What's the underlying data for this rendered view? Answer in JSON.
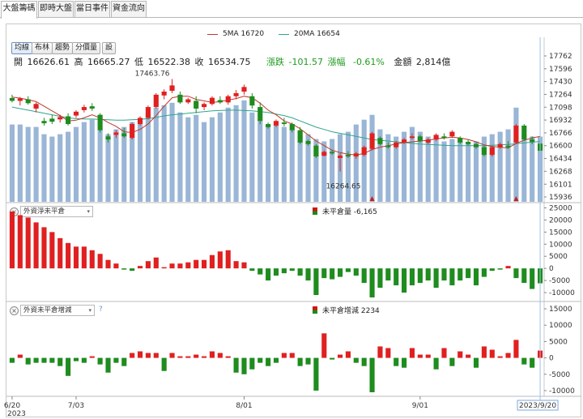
{
  "tabs": [
    {
      "label": "大盤籌碼",
      "active": true
    },
    {
      "label": "即時大盤",
      "active": false
    },
    {
      "label": "當日事件",
      "active": false
    },
    {
      "label": "資金流向",
      "active": false
    }
  ],
  "legend": {
    "ma5": "5MA 16720",
    "ma20": "20MA 16654",
    "ma5_color": "#c0392b",
    "ma20_color": "#2fa58c"
  },
  "toolbar": {
    "buttons": [
      "均線",
      "布林",
      "趨勢",
      "分價量",
      "設"
    ]
  },
  "info": {
    "open_label": "開",
    "open": "16626.61",
    "high_label": "高",
    "high": "16665.27",
    "low_label": "低",
    "low": "16522.38",
    "close_label": "收",
    "close": "16534.75",
    "change_label": "漲跌",
    "change": "-101.57",
    "pct_label": "漲幅",
    "pct": "-0.61%",
    "amount_label": "金額",
    "amount": "2,814億"
  },
  "annotations": {
    "peak": "17463.76",
    "trough": "16264.65"
  },
  "panel2": {
    "selector": "外資淨未平倉",
    "label": "未平倉量 -6,165",
    "y_ticks": [
      "25000",
      "20000",
      "15000",
      "10000",
      "5000",
      "0",
      "-5000",
      "-10000"
    ]
  },
  "panel3": {
    "selector": "外資未平倉增減",
    "help": "?",
    "label": "未平倉增減 2234",
    "y_ticks": [
      "15000",
      "10000",
      "5000",
      "0",
      "-5000",
      "-10000"
    ]
  },
  "xaxis": {
    "labels": [
      "6/20",
      "7/03",
      "8/01",
      "9/01"
    ],
    "year": "2023",
    "current_date": "2023/9/20"
  },
  "colors": {
    "up": "#e02020",
    "down": "#1e8c1e",
    "volume": "#9ab6d6",
    "crosshair": "#9cc0e8"
  },
  "chart_data": {
    "type": "candlestick",
    "price_ticks": [
      "17762",
      "17596",
      "17430",
      "17264",
      "17098",
      "16932",
      "16766",
      "16600",
      "16434",
      "16268",
      "16101",
      "15936"
    ],
    "price_range": [
      15936,
      17762
    ],
    "candles": [
      [
        17216,
        17260,
        17160,
        17180
      ],
      [
        17180,
        17230,
        17120,
        17210
      ],
      [
        17200,
        17240,
        17130,
        17150
      ],
      [
        17080,
        17160,
        17030,
        17140
      ],
      [
        16920,
        16960,
        16860,
        16890
      ],
      [
        16950,
        17000,
        16880,
        16910
      ],
      [
        16940,
        17000,
        16900,
        16970
      ],
      [
        16980,
        17020,
        16860,
        16880
      ],
      [
        16990,
        17060,
        16960,
        17040
      ],
      [
        17060,
        17130,
        17030,
        17100
      ],
      [
        17110,
        17150,
        17050,
        17080
      ],
      [
        17000,
        17020,
        16770,
        16800
      ],
      [
        16720,
        16760,
        16640,
        16680
      ],
      [
        16740,
        16800,
        16700,
        16770
      ],
      [
        16760,
        16830,
        16700,
        16720
      ],
      [
        16700,
        16900,
        16680,
        16880
      ],
      [
        16880,
        16980,
        16860,
        16960
      ],
      [
        16960,
        17120,
        16940,
        17100
      ],
      [
        17100,
        17280,
        17080,
        17260
      ],
      [
        17250,
        17330,
        17200,
        17300
      ],
      [
        17310,
        17463,
        17280,
        17380
      ],
      [
        17260,
        17300,
        17140,
        17160
      ],
      [
        17160,
        17220,
        17140,
        17200
      ],
      [
        17180,
        17240,
        17020,
        17080
      ],
      [
        17100,
        17160,
        17060,
        17140
      ],
      [
        17140,
        17240,
        17120,
        17220
      ],
      [
        17190,
        17240,
        17140,
        17160
      ],
      [
        17160,
        17260,
        17130,
        17240
      ],
      [
        17240,
        17320,
        17200,
        17280
      ],
      [
        17300,
        17390,
        17260,
        17360
      ],
      [
        17240,
        17280,
        17080,
        17120
      ],
      [
        17100,
        17160,
        16880,
        16920
      ],
      [
        16880,
        16900,
        16820,
        16840
      ],
      [
        16860,
        16940,
        16840,
        16920
      ],
      [
        16900,
        16960,
        16850,
        16880
      ],
      [
        16880,
        16900,
        16770,
        16800
      ],
      [
        16800,
        16840,
        16620,
        16640
      ],
      [
        16660,
        16680,
        16600,
        16620
      ],
      [
        16600,
        16620,
        16440,
        16460
      ],
      [
        16470,
        16540,
        16460,
        16520
      ],
      [
        16520,
        16550,
        16480,
        16500
      ],
      [
        16440,
        16500,
        16264,
        16470
      ],
      [
        16480,
        16530,
        16440,
        16460
      ],
      [
        16460,
        16520,
        16430,
        16500
      ],
      [
        16480,
        16600,
        16460,
        16580
      ],
      [
        16560,
        16780,
        16540,
        16760
      ],
      [
        16700,
        16720,
        16600,
        16620
      ],
      [
        16600,
        16640,
        16560,
        16580
      ],
      [
        16580,
        16660,
        16560,
        16640
      ],
      [
        16640,
        16700,
        16620,
        16680
      ],
      [
        16700,
        16760,
        16680,
        16720
      ],
      [
        16720,
        16740,
        16640,
        16660
      ],
      [
        16640,
        16700,
        16620,
        16680
      ],
      [
        16680,
        16760,
        16660,
        16740
      ],
      [
        16720,
        16760,
        16680,
        16700
      ],
      [
        16720,
        16800,
        16700,
        16780
      ],
      [
        16700,
        16720,
        16620,
        16640
      ],
      [
        16650,
        16680,
        16600,
        16620
      ],
      [
        16620,
        16640,
        16560,
        16580
      ],
      [
        16580,
        16600,
        16460,
        16480
      ],
      [
        16480,
        16600,
        16460,
        16580
      ],
      [
        16580,
        16640,
        16560,
        16620
      ],
      [
        16600,
        16660,
        16560,
        16580
      ],
      [
        16640,
        16880,
        16620,
        16860
      ],
      [
        16860,
        16880,
        16660,
        16680
      ],
      [
        16680,
        16720,
        16620,
        16650
      ],
      [
        16626.61,
        16665.27,
        16522.38,
        16534.75
      ]
    ],
    "ma5": [
      17230,
      17215,
      17195,
      17170,
      17110,
      17050,
      16990,
      16920,
      16930,
      16960,
      17000,
      16960,
      16900,
      16850,
      16780,
      16770,
      16810,
      16880,
      16990,
      17110,
      17220,
      17240,
      17240,
      17200,
      17180,
      17160,
      17170,
      17190,
      17210,
      17240,
      17220,
      17150,
      17060,
      17000,
      16920,
      16880,
      16820,
      16740,
      16660,
      16600,
      16540,
      16510,
      16490,
      16480,
      16500,
      16550,
      16580,
      16600,
      16620,
      16640,
      16650,
      16660,
      16670,
      16690,
      16700,
      16710,
      16700,
      16680,
      16650,
      16610,
      16590,
      16580,
      16570,
      16630,
      16670,
      16700,
      16720
    ],
    "ma20": [
      17100,
      17080,
      17060,
      17040,
      17020,
      17000,
      16980,
      16960,
      16950,
      16945,
      16945,
      16940,
      16935,
      16930,
      16930,
      16935,
      16940,
      16950,
      16965,
      16985,
      17000,
      17010,
      17020,
      17030,
      17040,
      17050,
      17055,
      17060,
      17060,
      17055,
      17050,
      17040,
      17030,
      17010,
      16990,
      16960,
      16920,
      16880,
      16840,
      16810,
      16780,
      16760,
      16740,
      16720,
      16700,
      16680,
      16670,
      16660,
      16650,
      16640,
      16630,
      16620,
      16615,
      16610,
      16605,
      16600,
      16600,
      16600,
      16600,
      16600,
      16605,
      16610,
      16615,
      16625,
      16635,
      16645,
      16654
    ],
    "volume": [
      0.64,
      0.64,
      0.62,
      0.62,
      0.56,
      0.54,
      0.56,
      0.58,
      0.62,
      0.66,
      0.68,
      0.6,
      0.56,
      0.6,
      0.62,
      0.66,
      0.68,
      0.73,
      0.78,
      0.8,
      0.82,
      0.74,
      0.7,
      0.72,
      0.66,
      0.7,
      0.74,
      0.78,
      0.8,
      0.84,
      0.74,
      0.68,
      0.64,
      0.66,
      0.62,
      0.6,
      0.58,
      0.56,
      0.52,
      0.5,
      0.52,
      0.56,
      0.58,
      0.64,
      0.68,
      0.72,
      0.6,
      0.56,
      0.54,
      0.58,
      0.62,
      0.58,
      0.54,
      0.52,
      0.5,
      0.52,
      0.5,
      0.48,
      0.5,
      0.54,
      0.56,
      0.58,
      0.6,
      0.78,
      0.56,
      0.54,
      0.54
    ],
    "net_oi": [
      23500,
      22000,
      21000,
      19000,
      17000,
      15000,
      12500,
      10500,
      9000,
      9000,
      7500,
      6000,
      3500,
      2000,
      -500,
      -1000,
      1000,
      3000,
      4500,
      500,
      2000,
      2000,
      2500,
      3500,
      3500,
      5500,
      7000,
      7500,
      3000,
      2500,
      -1000,
      -2500,
      -5000,
      -3000,
      -2000,
      -1000,
      -3000,
      -5000,
      -11000,
      -4000,
      -4500,
      -3500,
      -1500,
      -3000,
      -6000,
      -12000,
      -8000,
      -5000,
      -7000,
      -10000,
      -7000,
      -6000,
      -5000,
      -8000,
      -5000,
      -7000,
      -5000,
      -4000,
      -7000,
      -3500,
      -1000,
      -500,
      1000,
      -4000,
      -6000,
      -8500,
      -6165
    ],
    "oi_change": [
      -1500,
      1000,
      -2000,
      -1500,
      -1500,
      -1500,
      -2500,
      -5500,
      -1000,
      -1500,
      500,
      -2000,
      -4500,
      -1500,
      -2500,
      1500,
      2000,
      1500,
      1500,
      -4000,
      1500,
      500,
      500,
      1000,
      500,
      2000,
      1500,
      500,
      -4500,
      -5000,
      -3500,
      -1500,
      -2500,
      -1500,
      1500,
      1500,
      -2500,
      -2000,
      -10000,
      7500,
      -500,
      1000,
      2000,
      -1500,
      -2500,
      -10500,
      3500,
      3000,
      -2500,
      -3000,
      3000,
      1000,
      1000,
      -3500,
      3000,
      -2500,
      2000,
      1000,
      -3000,
      3500,
      2500,
      500,
      1500,
      5500,
      -2000,
      -3000,
      2234
    ]
  }
}
